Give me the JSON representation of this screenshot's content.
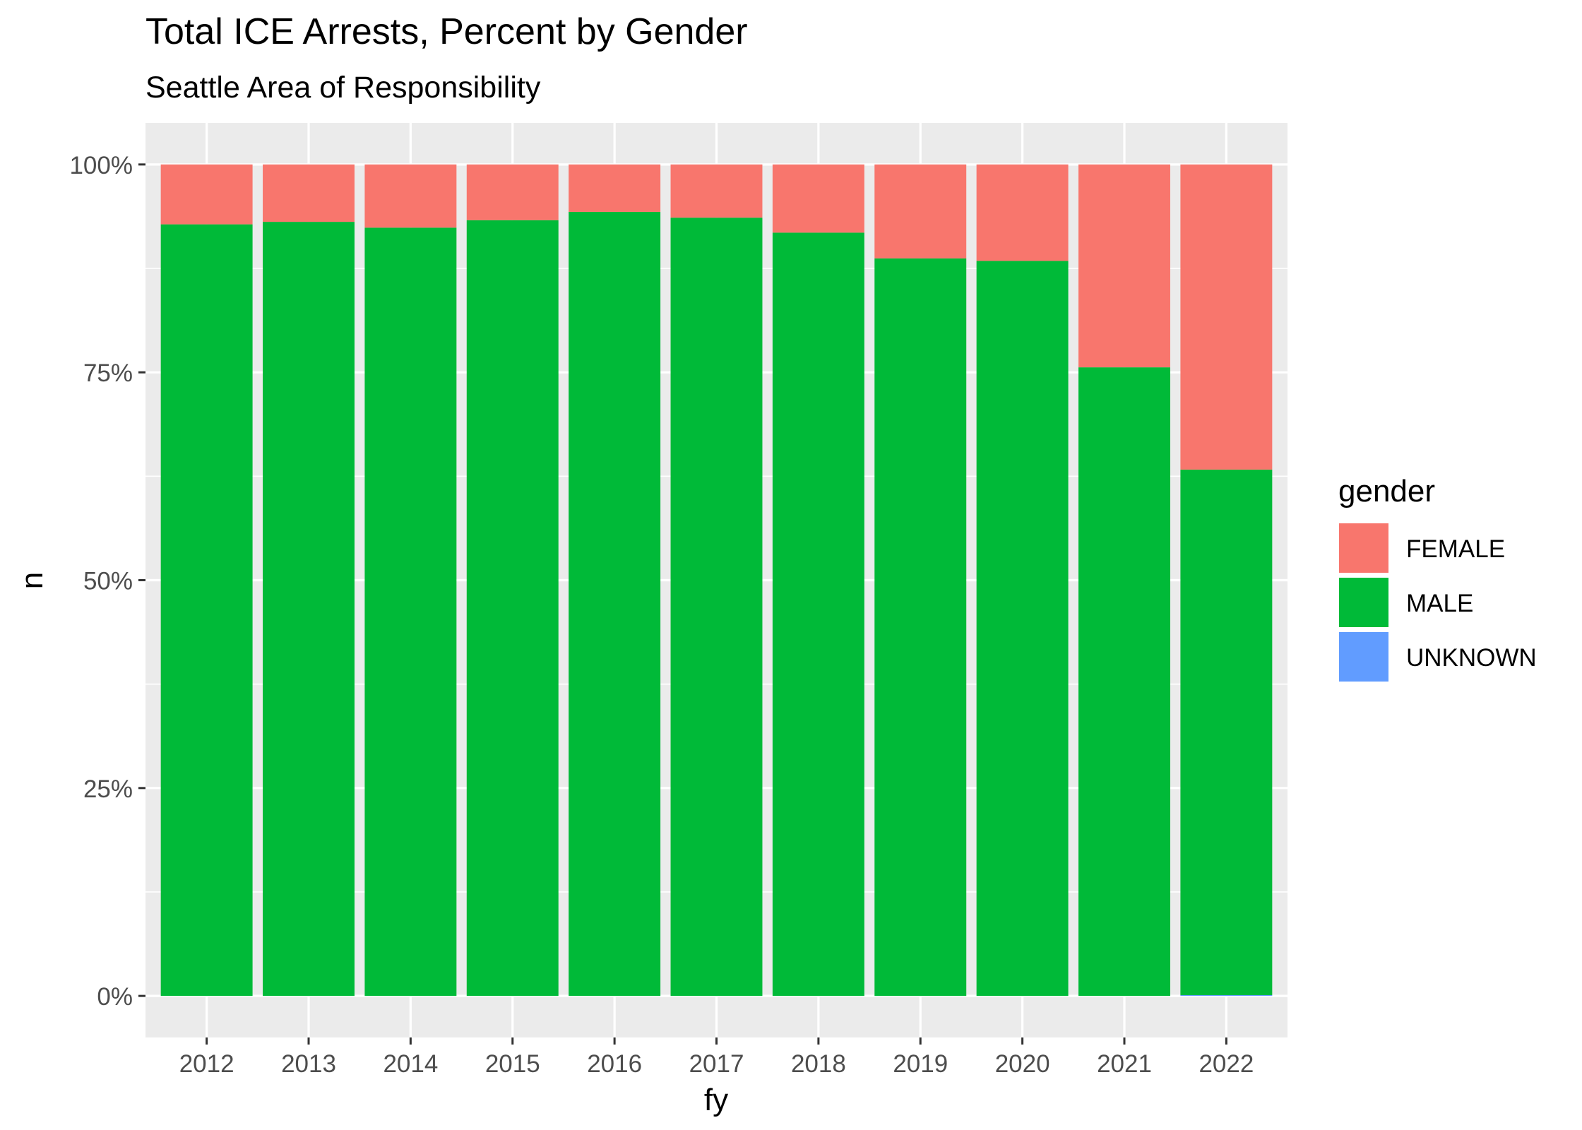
{
  "chart_data": {
    "type": "bar",
    "stacked": true,
    "normalized": true,
    "title": "Total ICE Arrests, Percent by Gender",
    "subtitle": "Seattle Area of Responsibility",
    "xlabel": "fy",
    "ylabel": "n",
    "categories": [
      "2012",
      "2013",
      "2014",
      "2015",
      "2016",
      "2017",
      "2018",
      "2019",
      "2020",
      "2021",
      "2022"
    ],
    "yticks": [
      0,
      25,
      50,
      75,
      100
    ],
    "ytick_labels": [
      "0%",
      "25%",
      "50%",
      "75%",
      "100%"
    ],
    "ylim": [
      -5,
      105
    ],
    "grid": true,
    "legend_title": "gender",
    "legend_position": "right",
    "series": [
      {
        "name": "FEMALE",
        "color": "#F8766D",
        "values": [
          7.2,
          6.9,
          7.6,
          6.7,
          5.7,
          6.4,
          8.2,
          11.3,
          11.6,
          24.4,
          36.7
        ]
      },
      {
        "name": "MALE",
        "color": "#00BA38",
        "values": [
          92.8,
          93.1,
          92.4,
          93.3,
          94.3,
          93.6,
          91.8,
          88.7,
          88.4,
          75.6,
          63.2
        ]
      },
      {
        "name": "UNKNOWN",
        "color": "#619CFF",
        "values": [
          0,
          0,
          0,
          0,
          0,
          0,
          0,
          0,
          0,
          0,
          0.1
        ]
      }
    ]
  }
}
